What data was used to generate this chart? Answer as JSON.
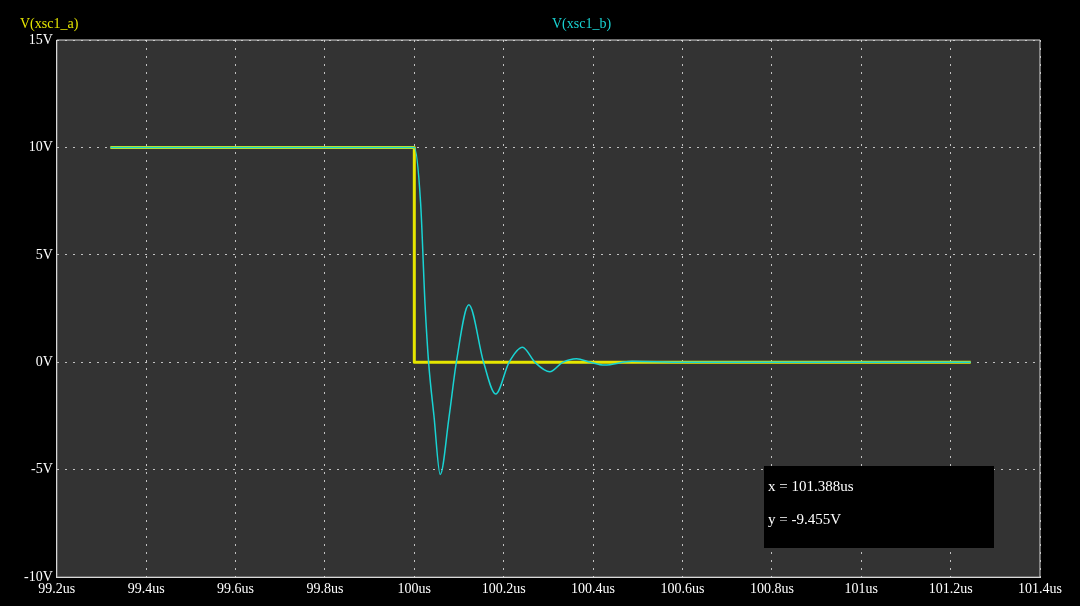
{
  "chart_data": {
    "type": "line",
    "legend": "top",
    "grid": true,
    "line_style": "solid",
    "marker": "none",
    "xlim": [
      99.2,
      101.4
    ],
    "xticks": [
      {
        "value": 99.2,
        "label": "99.2us"
      },
      {
        "value": 99.4,
        "label": "99.4us"
      },
      {
        "value": 99.6,
        "label": "99.6us"
      },
      {
        "value": 99.8,
        "label": "99.8us"
      },
      {
        "value": 100,
        "label": "100us"
      },
      {
        "value": 100.2,
        "label": "100.2us"
      },
      {
        "value": 100.4,
        "label": "100.4us"
      },
      {
        "value": 100.6,
        "label": "100.6us"
      },
      {
        "value": 100.8,
        "label": "100.8us"
      },
      {
        "value": 101,
        "label": "101us"
      },
      {
        "value": 101.2,
        "label": "101.2us"
      },
      {
        "value": 101.4,
        "label": "101.4us"
      }
    ],
    "ylim": [
      -10,
      15
    ],
    "yticks": [
      {
        "value": -10,
        "label": "-10V"
      },
      {
        "value": -5,
        "label": "-5V"
      },
      {
        "value": 0,
        "label": "0V"
      },
      {
        "value": 5,
        "label": "5V"
      },
      {
        "value": 10,
        "label": "10V"
      },
      {
        "value": 15,
        "label": "15V"
      }
    ],
    "series": [
      {
        "name": "V(xsc1_a)",
        "color": "#e6e600",
        "x": [
          99.32,
          100.0,
          100.0,
          101.245
        ],
        "values": [
          10,
          10,
          0,
          0
        ]
      },
      {
        "name": "V(xsc1_b)",
        "color": "#19d3d3",
        "x": [
          99.32,
          100.0,
          100.014,
          100.024,
          100.032,
          100.044,
          100.058,
          100.078,
          100.094,
          100.122,
          100.155,
          100.182,
          100.212,
          100.242,
          100.27,
          100.303,
          100.332,
          100.363,
          100.394,
          100.425,
          100.487,
          100.6,
          101.245
        ],
        "values": [
          10,
          10,
          7.45,
          2.7,
          0,
          -2.5,
          -5.22,
          -2.5,
          0,
          2.68,
          0,
          -1.47,
          0,
          0.7,
          0,
          -0.44,
          0,
          0.17,
          0,
          -0.13,
          0.05,
          0,
          0
        ]
      }
    ],
    "annotations": [
      "x = 101.388us",
      "y = -9.455V"
    ]
  }
}
